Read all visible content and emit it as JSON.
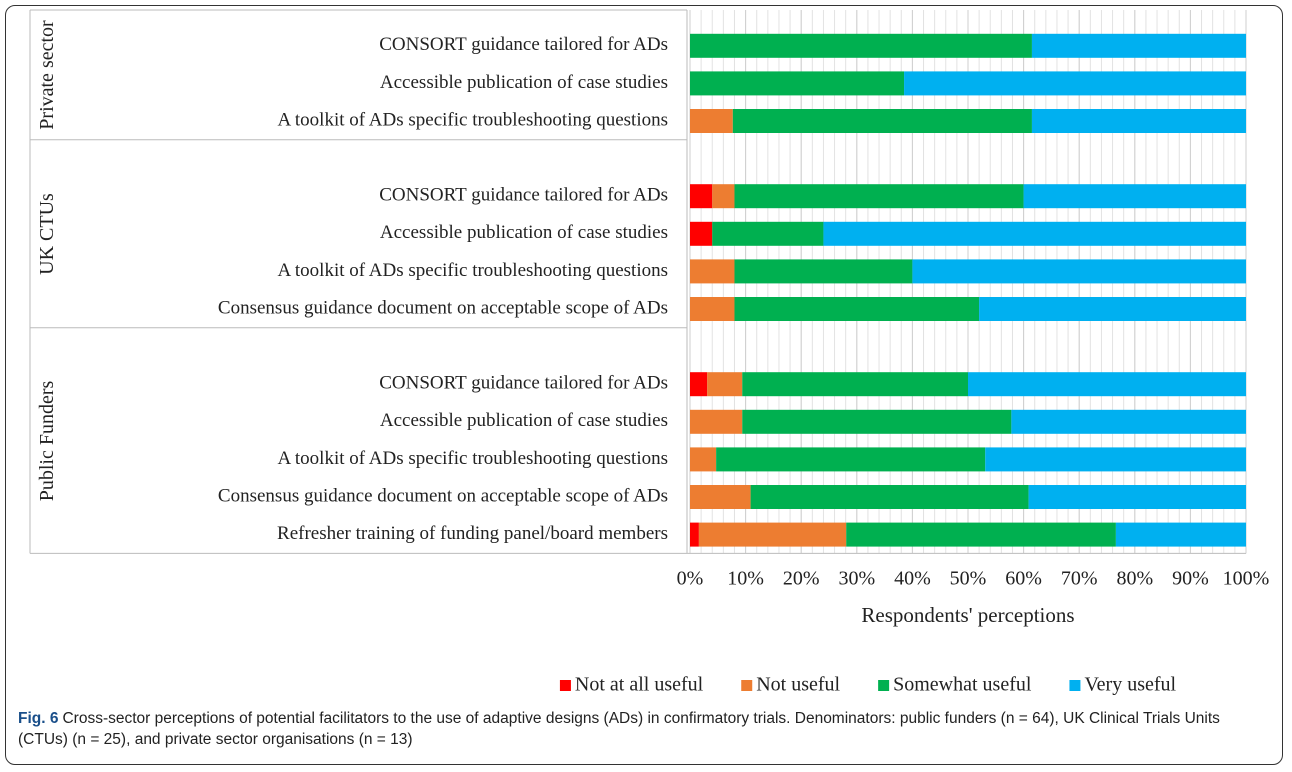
{
  "chart_data": {
    "type": "stacked-bar-horizontal",
    "groups": [
      {
        "name": "Private sector",
        "categories": [
          "CONSORT guidance tailored for ADs",
          "Accessible publication of case studies",
          "A toolkit of ADs specific troubleshooting questions"
        ]
      },
      {
        "name": "UK CTUs",
        "categories": [
          "CONSORT guidance tailored for ADs",
          "Accessible publication of case studies",
          "A toolkit of ADs specific troubleshooting questions",
          "Consensus guidance document on acceptable scope of ADs"
        ]
      },
      {
        "name": "Public Funders",
        "categories": [
          "CONSORT guidance tailored for ADs",
          "Accessible publication of case studies",
          "A toolkit of ADs specific troubleshooting questions",
          "Consensus guidance document on acceptable scope of ADs",
          "Refresher training of funding panel/board members"
        ]
      }
    ],
    "series": [
      {
        "name": "Not at all useful",
        "color": "#ff0000",
        "values": [
          0,
          0,
          0,
          4,
          4,
          0,
          0,
          3.1,
          0,
          0,
          0,
          1.6
        ]
      },
      {
        "name": "Not useful",
        "color": "#ed7d31",
        "values": [
          0,
          0,
          7.7,
          4,
          0,
          8,
          8,
          6.3,
          9.4,
          4.7,
          10.9,
          26.5
        ]
      },
      {
        "name": "Somewhat useful",
        "color": "#00b050",
        "values": [
          61.5,
          38.5,
          53.8,
          52,
          20,
          32,
          44,
          40.6,
          48.4,
          48.4,
          50,
          48.5
        ]
      },
      {
        "name": "Very useful",
        "color": "#00b0f0",
        "values": [
          38.5,
          61.5,
          38.5,
          40,
          76,
          60,
          48,
          50,
          42.2,
          46.9,
          39.1,
          23.4
        ]
      }
    ],
    "x_label": "Respondents' perceptions",
    "xlim": [
      0,
      100
    ],
    "xticks": [
      {
        "value": 0,
        "label": "0%"
      },
      {
        "value": 10,
        "label": "10%"
      },
      {
        "value": 20,
        "label": "20%"
      },
      {
        "value": 30,
        "label": "30%"
      },
      {
        "value": 40,
        "label": "40%"
      },
      {
        "value": 50,
        "label": "50%"
      },
      {
        "value": 60,
        "label": "60%"
      },
      {
        "value": 70,
        "label": "70%"
      },
      {
        "value": 80,
        "label": "80%"
      },
      {
        "value": 90,
        "label": "90%"
      },
      {
        "value": 100,
        "label": "100%"
      }
    ],
    "grid": true,
    "legend": "bottom"
  },
  "caption": {
    "label": "Fig. 6",
    "text": "Cross-sector perceptions of potential facilitators to the use of adaptive designs (ADs) in confirmatory trials. Denominators: public funders (n = 64), UK Clinical Trials Units (CTUs) (n = 25), and private sector organisations (n = 13)"
  }
}
